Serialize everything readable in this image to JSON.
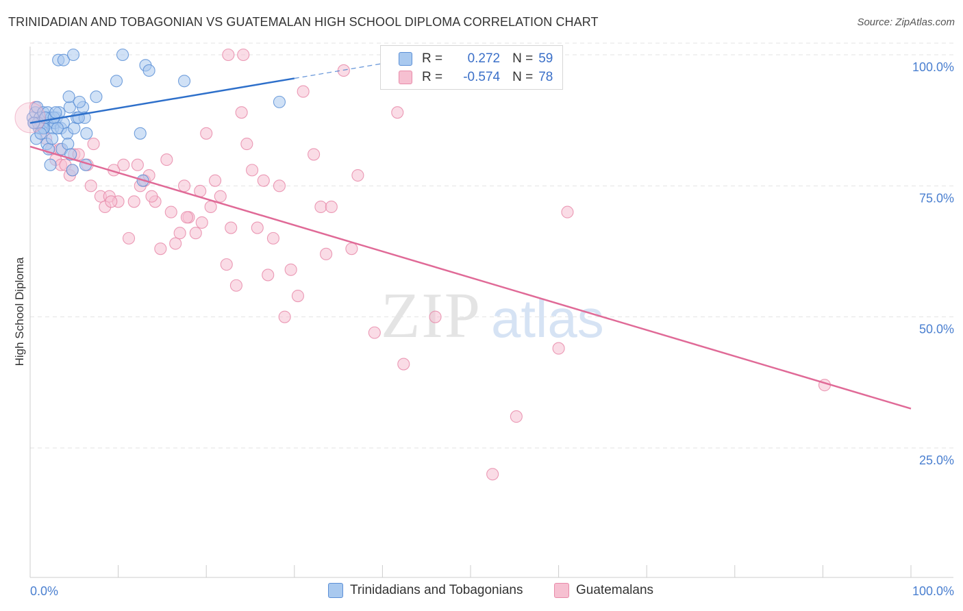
{
  "title": "TRINIDADIAN AND TOBAGONIAN VS GUATEMALAN HIGH SCHOOL DIPLOMA CORRELATION CHART",
  "source": "Source: ZipAtlas.com",
  "watermark": {
    "zip": "ZIP",
    "atlas": "atlas"
  },
  "colors": {
    "blue_fill": "#a9c9ef",
    "blue_stroke": "#5b8fd6",
    "blue_line": "#2d6fca",
    "pink_fill": "#f6c0d1",
    "pink_stroke": "#e88aa9",
    "pink_line": "#e06a97",
    "tick_text": "#4a7fd0",
    "grid": "#e3e3e3"
  },
  "legend": {
    "rows": [
      {
        "r_label": "R =",
        "r_value": "0.272",
        "n_label": "N =",
        "n_value": "59"
      },
      {
        "r_label": "R =",
        "r_value": "-0.574",
        "n_label": "N =",
        "n_value": "78"
      }
    ]
  },
  "chart_data": {
    "type": "scatter",
    "ylabel": "High School Diploma",
    "xlim": [
      0,
      100
    ],
    "ylim": [
      0,
      102
    ],
    "x_ticks": [
      "0.0%",
      "100.0%"
    ],
    "y_ticks": [
      {
        "value": 100,
        "label": "100.0%"
      },
      {
        "value": 75,
        "label": "75.0%"
      },
      {
        "value": 50,
        "label": "50.0%"
      },
      {
        "value": 25,
        "label": "25.0%"
      }
    ],
    "grid": true,
    "legend_position": "top-center",
    "series": [
      {
        "name": "Trinidadians and Tobagonians",
        "color": "blue",
        "trend": {
          "x0": 0,
          "y0": 87.0,
          "x1": 30,
          "y1": 95.5,
          "dash_to_x": 40
        },
        "points": [
          [
            0.3,
            88
          ],
          [
            0.5,
            87
          ],
          [
            0.6,
            89
          ],
          [
            0.8,
            90
          ],
          [
            1.0,
            86
          ],
          [
            1.1,
            88
          ],
          [
            1.3,
            87
          ],
          [
            1.5,
            89
          ],
          [
            1.6,
            86
          ],
          [
            1.8,
            88
          ],
          [
            2.0,
            89
          ],
          [
            2.2,
            87
          ],
          [
            2.4,
            88
          ],
          [
            2.6,
            86
          ],
          [
            2.8,
            87
          ],
          [
            3.0,
            88
          ],
          [
            3.3,
            89
          ],
          [
            3.5,
            86
          ],
          [
            3.8,
            87
          ],
          [
            4.2,
            85
          ],
          [
            0.7,
            84
          ],
          [
            1.9,
            83
          ],
          [
            2.1,
            82
          ],
          [
            2.5,
            84
          ],
          [
            3.6,
            82
          ],
          [
            4.3,
            83
          ],
          [
            4.6,
            81
          ],
          [
            6.4,
            85
          ],
          [
            5.0,
            86
          ],
          [
            1.5,
            86
          ],
          [
            2.3,
            79
          ],
          [
            4.8,
            78
          ],
          [
            6.3,
            79
          ],
          [
            12.8,
            76
          ],
          [
            5.3,
            88
          ],
          [
            6.0,
            90
          ],
          [
            4.5,
            90
          ],
          [
            5.6,
            91
          ],
          [
            7.5,
            92
          ],
          [
            4.4,
            92
          ],
          [
            9.8,
            95
          ],
          [
            17.5,
            95
          ],
          [
            13.1,
            98
          ],
          [
            13.5,
            97
          ],
          [
            3.2,
            99
          ],
          [
            3.8,
            99
          ],
          [
            4.9,
            100
          ],
          [
            10.5,
            100
          ],
          [
            28.3,
            91
          ],
          [
            12.5,
            85
          ],
          [
            6.2,
            88
          ],
          [
            0.9,
            87
          ],
          [
            1.7,
            88
          ],
          [
            2.7,
            88
          ],
          [
            3.1,
            86
          ],
          [
            0.4,
            87
          ],
          [
            1.2,
            85
          ],
          [
            2.9,
            89
          ],
          [
            5.5,
            88
          ]
        ]
      },
      {
        "name": "Guatemalans",
        "color": "pink",
        "trend": {
          "x0": 0,
          "y0": 82.5,
          "x1": 100,
          "y1": 32.5
        },
        "points": [
          [
            0.6,
            90
          ],
          [
            1.2,
            86
          ],
          [
            1.8,
            84
          ],
          [
            2.4,
            82
          ],
          [
            2.9,
            80
          ],
          [
            3.5,
            79
          ],
          [
            4.0,
            79
          ],
          [
            4.5,
            77
          ],
          [
            5.0,
            81
          ],
          [
            5.5,
            81
          ],
          [
            6.5,
            79
          ],
          [
            7.2,
            83
          ],
          [
            8.0,
            73
          ],
          [
            8.5,
            71
          ],
          [
            9.0,
            73
          ],
          [
            9.5,
            78
          ],
          [
            10.0,
            72
          ],
          [
            10.6,
            79
          ],
          [
            11.2,
            65
          ],
          [
            11.8,
            72
          ],
          [
            12.5,
            75
          ],
          [
            13.0,
            76
          ],
          [
            13.5,
            77
          ],
          [
            14.2,
            72
          ],
          [
            14.8,
            63
          ],
          [
            15.5,
            80
          ],
          [
            16.0,
            70
          ],
          [
            16.5,
            64
          ],
          [
            17.0,
            66
          ],
          [
            17.5,
            75
          ],
          [
            18.0,
            69
          ],
          [
            18.8,
            66
          ],
          [
            19.5,
            68
          ],
          [
            20.0,
            85
          ],
          [
            20.5,
            71
          ],
          [
            21.0,
            76
          ],
          [
            21.6,
            73
          ],
          [
            22.3,
            60
          ],
          [
            22.8,
            67
          ],
          [
            23.4,
            56
          ],
          [
            24.0,
            89
          ],
          [
            24.6,
            83
          ],
          [
            25.2,
            78
          ],
          [
            25.8,
            67
          ],
          [
            26.5,
            76
          ],
          [
            27.0,
            58
          ],
          [
            27.6,
            65
          ],
          [
            28.3,
            75
          ],
          [
            28.9,
            50
          ],
          [
            29.6,
            59
          ],
          [
            30.4,
            54
          ],
          [
            31.0,
            93
          ],
          [
            32.2,
            81
          ],
          [
            33.0,
            71
          ],
          [
            33.6,
            62
          ],
          [
            34.2,
            71
          ],
          [
            35.6,
            97
          ],
          [
            36.5,
            63
          ],
          [
            37.2,
            77
          ],
          [
            39.1,
            47
          ],
          [
            41.7,
            89
          ],
          [
            42.4,
            41
          ],
          [
            46.0,
            50
          ],
          [
            52.5,
            20
          ],
          [
            55.2,
            31
          ],
          [
            60.0,
            44
          ],
          [
            61.0,
            70
          ],
          [
            90.2,
            37
          ],
          [
            4.8,
            78
          ],
          [
            9.2,
            72
          ],
          [
            12.2,
            79
          ],
          [
            17.8,
            69
          ],
          [
            19.3,
            74
          ],
          [
            22.5,
            100
          ],
          [
            24.2,
            100
          ],
          [
            13.8,
            73
          ],
          [
            6.9,
            75
          ],
          [
            3.4,
            82
          ]
        ]
      }
    ]
  },
  "bottom_legend": [
    {
      "label": "Trinidadians and Tobagonians",
      "color": "blue"
    },
    {
      "label": "Guatemalans",
      "color": "pink"
    }
  ]
}
